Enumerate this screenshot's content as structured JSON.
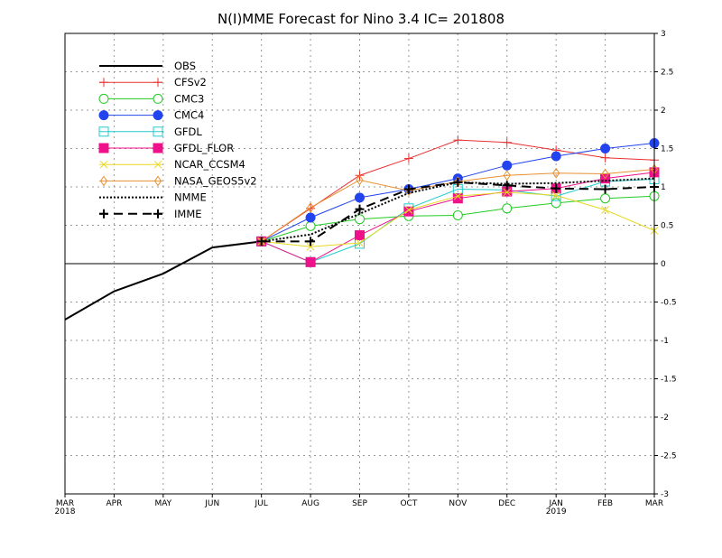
{
  "chart_data": {
    "type": "line",
    "title": "N(I)MME Forecast for Nino 3.4   IC= 201808",
    "xlabel": "",
    "ylabel": "",
    "x_ticks": [
      "MAR",
      "APR",
      "MAY",
      "JUN",
      "JUL",
      "AUG",
      "SEP",
      "OCT",
      "NOV",
      "DEC",
      "JAN",
      "FEB",
      "MAR"
    ],
    "x_sublabels": [
      {
        "index": 0,
        "text": "2018"
      },
      {
        "index": 10,
        "text": "2019"
      }
    ],
    "y_ticks": [
      "3",
      "2.5",
      "2",
      "1.5",
      "1",
      "0.5",
      "0",
      "-0.5",
      "-1",
      "-1.5",
      "-2",
      "-2.5",
      "-3"
    ],
    "ylim": [
      -3,
      3
    ],
    "grid": true,
    "legend_position": "top-left",
    "series": [
      {
        "name": "OBS",
        "color": "#000000",
        "dash": "solid",
        "width": 2,
        "marker": "none",
        "x": [
          0,
          1,
          2,
          3,
          4
        ],
        "values": [
          -0.73,
          -0.36,
          -0.13,
          0.21,
          0.29
        ]
      },
      {
        "name": "CFSv2",
        "color": "#e83030",
        "dash": "solid",
        "width": 1,
        "marker": "plus",
        "x": [
          4,
          5,
          6,
          7,
          8,
          9,
          10,
          11,
          12
        ],
        "values": [
          0.29,
          0.72,
          1.15,
          1.37,
          1.61,
          1.58,
          1.48,
          1.38,
          1.35
        ]
      },
      {
        "name": "CMC3",
        "color": "#22cc22",
        "dash": "solid",
        "width": 1,
        "marker": "circle-open",
        "x": [
          4,
          5,
          6,
          7,
          8,
          9,
          10,
          11,
          12
        ],
        "values": [
          0.29,
          0.49,
          0.58,
          0.62,
          0.63,
          0.72,
          0.79,
          0.85,
          0.88
        ]
      },
      {
        "name": "CMC4",
        "color": "#2244ee",
        "dash": "solid",
        "width": 1,
        "marker": "circle-filled",
        "x": [
          4,
          5,
          6,
          7,
          8,
          9,
          10,
          11,
          12
        ],
        "values": [
          0.29,
          0.6,
          0.86,
          0.97,
          1.11,
          1.28,
          1.4,
          1.5,
          1.57
        ]
      },
      {
        "name": "GFDL",
        "color": "#22cccc",
        "dash": "solid",
        "width": 1,
        "marker": "square-open",
        "x": [
          4,
          5,
          6,
          7,
          8,
          9,
          10,
          11,
          12
        ],
        "values": [
          0.29,
          0.02,
          0.26,
          0.72,
          0.97,
          0.96,
          0.88,
          1.07,
          1.1
        ]
      },
      {
        "name": "GFDL_FLOR",
        "color": "#ee1189",
        "dash": "solid",
        "width": 1,
        "marker": "square-filled",
        "x": [
          4,
          5,
          6,
          7,
          8,
          9,
          10,
          11,
          12
        ],
        "values": [
          0.29,
          0.02,
          0.37,
          0.68,
          0.85,
          0.94,
          0.98,
          1.11,
          1.19
        ]
      },
      {
        "name": "NCAR_CCSM4",
        "color": "#e8d820",
        "dash": "solid",
        "width": 1,
        "marker": "cross",
        "x": [
          4,
          5,
          6,
          7,
          8,
          9,
          10,
          11,
          12
        ],
        "values": [
          0.29,
          0.22,
          0.27,
          0.7,
          0.88,
          0.93,
          0.89,
          0.7,
          0.43
        ]
      },
      {
        "name": "NASA_GEOS5v2",
        "color": "#e89030",
        "dash": "solid",
        "width": 1,
        "marker": "diamond-open",
        "x": [
          4,
          5,
          6,
          7,
          8,
          9,
          10,
          11,
          12
        ],
        "values": [
          0.29,
          0.73,
          1.09,
          0.95,
          1.07,
          1.15,
          1.18,
          1.17,
          1.23
        ]
      },
      {
        "name": "NMME",
        "color": "#000000",
        "dash": "dotted",
        "width": 2,
        "marker": "none",
        "x": [
          4,
          5,
          6,
          7,
          8,
          9,
          10,
          11,
          12
        ],
        "values": [
          0.29,
          0.38,
          0.65,
          0.92,
          1.06,
          1.04,
          1.05,
          1.08,
          1.11
        ]
      },
      {
        "name": "IMME",
        "color": "#000000",
        "dash": "dashed",
        "width": 2,
        "marker": "plus",
        "x": [
          4,
          5,
          6,
          7,
          8,
          9,
          10,
          11,
          12
        ],
        "values": [
          0.29,
          0.29,
          0.71,
          0.97,
          1.06,
          1.02,
          0.98,
          0.97,
          1.0
        ]
      }
    ]
  }
}
